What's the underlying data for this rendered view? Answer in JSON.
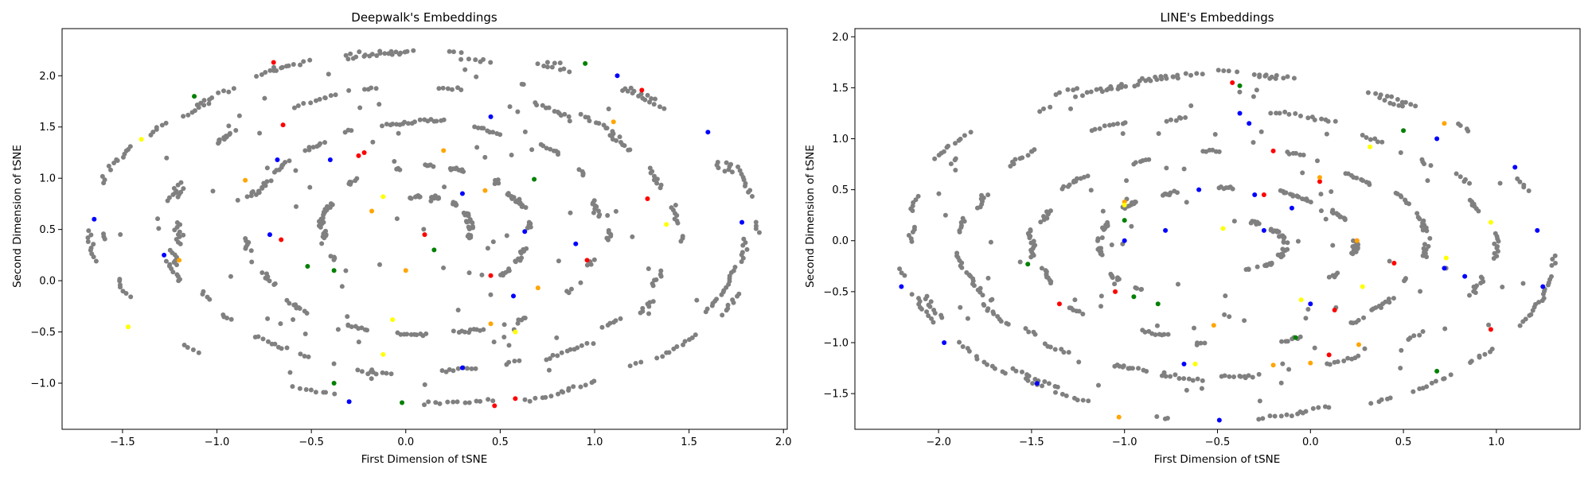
{
  "chart_data": [
    {
      "type": "scatter",
      "title": "Deepwalk's Embeddings",
      "xlabel": "First Dimension of tSNE",
      "ylabel": "Second Dimension of tSNE",
      "xlim": [
        -1.82,
        2.02
      ],
      "ylim": [
        -1.45,
        2.46
      ],
      "xticks": [
        -1.5,
        -1.0,
        -0.5,
        0.0,
        0.5,
        1.0,
        1.5,
        2.0
      ],
      "yticks": [
        -1.0,
        -0.5,
        0.0,
        0.5,
        1.0,
        1.5,
        2.0
      ],
      "grid": false,
      "colors": {
        "gray": "#808080",
        "red": "#ff0000",
        "blue": "#0000ff",
        "green": "#008000",
        "orange": "#ffa500",
        "yellow": "#ffff00"
      },
      "background_structure": {
        "kind": "concentric-rings",
        "center": [
          0.1,
          0.5
        ],
        "rings": [
          {
            "rx": 1.73,
            "ry": 1.72,
            "n": 240
          },
          {
            "rx": 1.35,
            "ry": 1.4,
            "n": 190
          },
          {
            "rx": 0.95,
            "ry": 1.05,
            "n": 150
          },
          {
            "rx": 0.55,
            "ry": 0.62,
            "n": 100
          },
          {
            "rx": 0.25,
            "ry": 0.32,
            "n": 50
          }
        ]
      },
      "series": [
        {
          "color": "red",
          "points": [
            [
              -0.7,
              2.13
            ],
            [
              -0.65,
              1.52
            ],
            [
              -0.25,
              1.22
            ],
            [
              -0.22,
              1.25
            ],
            [
              1.25,
              1.86
            ],
            [
              1.28,
              0.8
            ],
            [
              0.1,
              0.45
            ],
            [
              0.45,
              0.05
            ],
            [
              0.96,
              0.2
            ],
            [
              0.58,
              -1.15
            ],
            [
              0.47,
              -1.22
            ],
            [
              -0.66,
              0.4
            ]
          ]
        },
        {
          "color": "blue",
          "points": [
            [
              -1.65,
              0.6
            ],
            [
              -1.28,
              0.25
            ],
            [
              -0.72,
              0.45
            ],
            [
              -0.68,
              1.18
            ],
            [
              -0.4,
              1.18
            ],
            [
              0.3,
              0.85
            ],
            [
              0.45,
              1.6
            ],
            [
              0.63,
              0.48
            ],
            [
              0.9,
              0.36
            ],
            [
              1.12,
              2.0
            ],
            [
              1.6,
              1.45
            ],
            [
              1.78,
              0.57
            ],
            [
              0.3,
              -0.85
            ],
            [
              0.57,
              -0.15
            ],
            [
              -0.3,
              -1.18
            ]
          ]
        },
        {
          "color": "green",
          "points": [
            [
              0.68,
              0.99
            ],
            [
              0.95,
              2.12
            ],
            [
              -0.52,
              0.14
            ],
            [
              -0.38,
              0.1
            ],
            [
              -0.38,
              -1.0
            ],
            [
              -0.02,
              -1.19
            ],
            [
              0.15,
              0.3
            ],
            [
              -1.12,
              1.8
            ]
          ]
        },
        {
          "color": "orange",
          "points": [
            [
              0.2,
              1.27
            ],
            [
              0.42,
              0.88
            ],
            [
              0.7,
              -0.07
            ],
            [
              1.1,
              1.55
            ],
            [
              -1.2,
              0.2
            ],
            [
              -0.85,
              0.98
            ],
            [
              0.45,
              -0.42
            ],
            [
              -0.18,
              0.68
            ],
            [
              0.0,
              0.1
            ]
          ]
        },
        {
          "color": "yellow",
          "points": [
            [
              -1.4,
              1.38
            ],
            [
              -0.12,
              0.82
            ],
            [
              -0.12,
              -0.72
            ],
            [
              0.58,
              -0.5
            ],
            [
              -0.07,
              -0.38
            ],
            [
              1.38,
              0.55
            ],
            [
              -1.47,
              -0.45
            ]
          ]
        }
      ]
    },
    {
      "type": "scatter",
      "title": "LINE's Embeddings",
      "xlabel": "First Dimension of tSNE",
      "ylabel": "Second Dimension of tSNE",
      "xlim": [
        -2.45,
        1.45
      ],
      "ylim": [
        -1.85,
        2.08
      ],
      "xticks": [
        -2.0,
        -1.5,
        -1.0,
        -0.5,
        0.0,
        0.5,
        1.0
      ],
      "yticks": [
        -1.5,
        -1.0,
        -0.5,
        0.0,
        0.5,
        1.0,
        1.5,
        2.0
      ],
      "grid": false,
      "colors": {
        "gray": "#808080",
        "red": "#ff0000",
        "blue": "#0000ff",
        "green": "#008000",
        "orange": "#ffa500",
        "yellow": "#ffff00"
      },
      "background_structure": {
        "kind": "concentric-rings",
        "center": [
          -0.45,
          -0.05
        ],
        "rings": [
          {
            "rx": 1.75,
            "ry": 1.68,
            "n": 230
          },
          {
            "rx": 1.42,
            "ry": 1.3,
            "n": 180
          },
          {
            "rx": 1.05,
            "ry": 0.95,
            "n": 140
          },
          {
            "rx": 0.7,
            "ry": 0.58,
            "n": 100
          },
          {
            "rx": 0.32,
            "ry": 0.25,
            "n": 50
          }
        ]
      },
      "series": [
        {
          "color": "red",
          "points": [
            [
              -1.35,
              -0.62
            ],
            [
              -1.05,
              -0.5
            ],
            [
              -0.2,
              0.88
            ],
            [
              0.05,
              0.58
            ],
            [
              0.45,
              -0.22
            ],
            [
              0.97,
              -0.87
            ],
            [
              0.13,
              -0.68
            ],
            [
              0.25,
              0.0
            ],
            [
              0.1,
              -1.12
            ],
            [
              -0.25,
              0.45
            ],
            [
              -0.42,
              1.55
            ]
          ]
        },
        {
          "color": "blue",
          "points": [
            [
              -2.2,
              -0.45
            ],
            [
              -1.97,
              -1.0
            ],
            [
              -1.47,
              -1.4
            ],
            [
              -1.0,
              0.0
            ],
            [
              -0.78,
              0.1
            ],
            [
              -0.6,
              0.5
            ],
            [
              -0.38,
              1.25
            ],
            [
              -0.33,
              1.15
            ],
            [
              -0.25,
              0.1
            ],
            [
              0.0,
              -0.62
            ],
            [
              -0.1,
              0.32
            ],
            [
              0.68,
              1.0
            ],
            [
              0.72,
              -0.27
            ],
            [
              0.83,
              -0.35
            ],
            [
              1.22,
              0.1
            ],
            [
              1.1,
              0.72
            ],
            [
              1.25,
              -0.45
            ],
            [
              -0.49,
              -1.76
            ],
            [
              -0.68,
              -1.21
            ],
            [
              -0.3,
              0.45
            ]
          ]
        },
        {
          "color": "green",
          "points": [
            [
              -1.52,
              -0.23
            ],
            [
              -0.08,
              -0.95
            ],
            [
              0.68,
              -1.28
            ],
            [
              0.5,
              1.08
            ],
            [
              -0.38,
              1.52
            ],
            [
              -1.0,
              0.2
            ],
            [
              -0.95,
              -0.55
            ],
            [
              -0.82,
              -0.62
            ]
          ]
        },
        {
          "color": "orange",
          "points": [
            [
              -0.52,
              -0.83
            ],
            [
              0.26,
              -1.02
            ],
            [
              0.0,
              -1.2
            ],
            [
              -0.2,
              -1.22
            ],
            [
              0.25,
              0.0
            ],
            [
              0.72,
              1.15
            ],
            [
              -1.03,
              -1.73
            ],
            [
              -1.0,
              0.38
            ],
            [
              0.05,
              0.62
            ]
          ]
        },
        {
          "color": "yellow",
          "points": [
            [
              0.32,
              0.92
            ],
            [
              -0.47,
              0.12
            ],
            [
              0.97,
              0.18
            ],
            [
              0.73,
              -0.17
            ],
            [
              -1.0,
              0.35
            ],
            [
              0.28,
              -0.45
            ],
            [
              -0.62,
              -1.21
            ],
            [
              -0.05,
              -0.58
            ]
          ]
        }
      ]
    }
  ]
}
